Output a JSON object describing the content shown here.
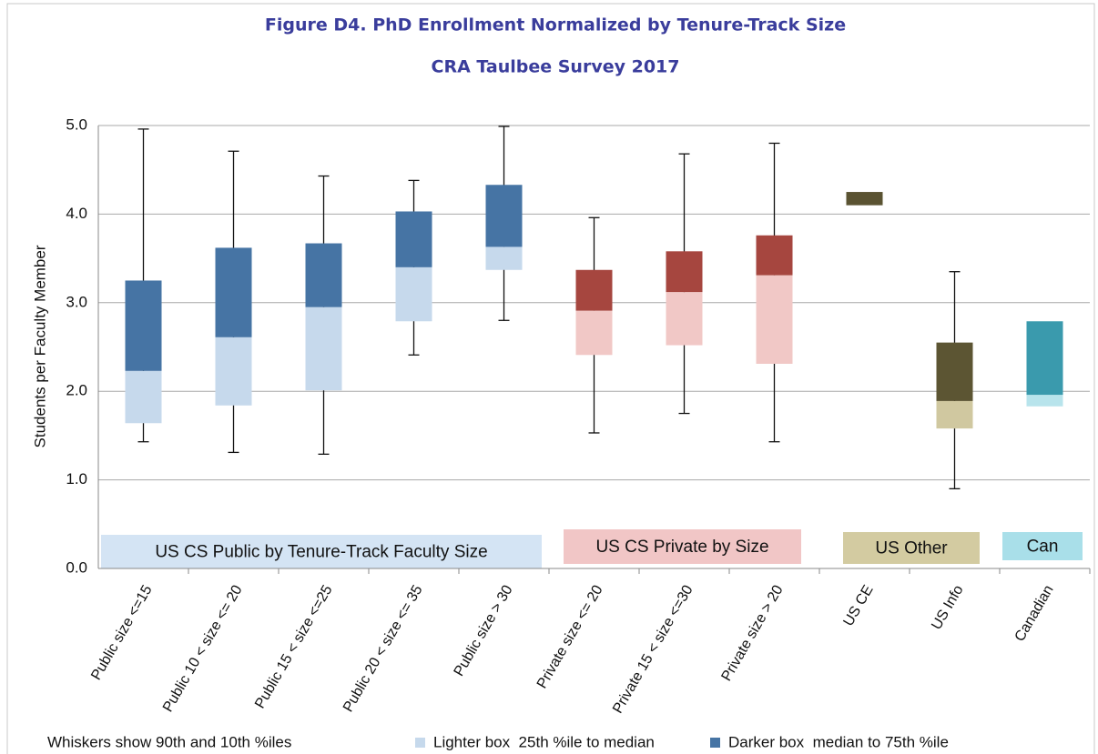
{
  "chart_data": {
    "type": "box",
    "title": "Figure D4. PhD Enrollment Normalized by Tenure-Track Size",
    "subtitle": "CRA Taulbee Survey 2017",
    "y_label": "Students per Faculty Member",
    "categories": [
      "Public size <=15",
      "Public 10 < size <= 20",
      "Public 15 < size <=25",
      "Public 20 < size <= 35",
      "Public size > 30",
      "Private size <= 20",
      "Private 15 < size <=30",
      "Private size > 20",
      "US CE",
      "US Info",
      "Canadian"
    ],
    "boxes": [
      {
        "p10": 1.43,
        "q1": 1.64,
        "median": 2.23,
        "q3": 3.25,
        "p90": 4.96,
        "light": "#c6d9ec",
        "dark": "#4674a4"
      },
      {
        "p10": 1.31,
        "q1": 1.84,
        "median": 2.61,
        "q3": 3.62,
        "p90": 4.71,
        "light": "#c6d9ec",
        "dark": "#4674a4"
      },
      {
        "p10": 1.29,
        "q1": 2.01,
        "median": 2.95,
        "q3": 3.67,
        "p90": 4.43,
        "light": "#c6d9ec",
        "dark": "#4674a4"
      },
      {
        "p10": 2.41,
        "q1": 2.79,
        "median": 3.4,
        "q3": 4.03,
        "p90": 4.38,
        "light": "#c6d9ec",
        "dark": "#4674a4"
      },
      {
        "p10": 2.8,
        "q1": 3.37,
        "median": 3.63,
        "q3": 4.33,
        "p90": 4.99,
        "light": "#c6d9ec",
        "dark": "#4674a4"
      },
      {
        "p10": 1.53,
        "q1": 2.41,
        "median": 2.91,
        "q3": 3.37,
        "p90": 3.96,
        "light": "#f1c8c6",
        "dark": "#a6463f"
      },
      {
        "p10": 1.75,
        "q1": 2.52,
        "median": 3.12,
        "q3": 3.58,
        "p90": 4.68,
        "light": "#f1c8c6",
        "dark": "#a6463f"
      },
      {
        "p10": 1.43,
        "q1": 2.31,
        "median": 3.31,
        "q3": 3.76,
        "p90": 4.8,
        "light": "#f1c8c6",
        "dark": "#a6463f"
      },
      {
        "p10": null,
        "q1": 4.1,
        "median": 4.1,
        "q3": 4.25,
        "p90": null,
        "light": "#d0c8a0",
        "dark": "#5a5332"
      },
      {
        "p10": 0.9,
        "q1": 1.58,
        "median": 1.89,
        "q3": 2.55,
        "p90": 3.35,
        "light": "#d0c8a0",
        "dark": "#5c5533"
      },
      {
        "p10": null,
        "q1": 1.83,
        "median": 1.96,
        "q3": 2.79,
        "p90": null,
        "light": "#b8e4ec",
        "dark": "#3a9aad"
      }
    ],
    "ylim": [
      0,
      5
    ],
    "yticks": [
      {
        "value": 0,
        "label": "0.0"
      },
      {
        "value": 1,
        "label": "1.0"
      },
      {
        "value": 2,
        "label": "2.0"
      },
      {
        "value": 3,
        "label": "3.0"
      },
      {
        "value": 4,
        "label": "4.0"
      },
      {
        "value": 5,
        "label": "5.0"
      }
    ],
    "grid": true,
    "groups": [
      {
        "label": "US CS Public by Tenure-Track Faculty Size",
        "color": "#d4e4f4"
      },
      {
        "label": "US CS Private by Size",
        "color": "#f1c6c6"
      },
      {
        "label": "US Other",
        "color": "#d3cba1"
      },
      {
        "label": "Can",
        "color": "#a9dfe9"
      }
    ],
    "legend": [
      {
        "label": "Whiskers show 90th and 10th %iles"
      },
      {
        "label": "Lighter box  25th %ile to median",
        "color": "#c6d9ec"
      },
      {
        "label": "Darker box  median to 75th %ile",
        "color": "#4674a4"
      }
    ]
  }
}
